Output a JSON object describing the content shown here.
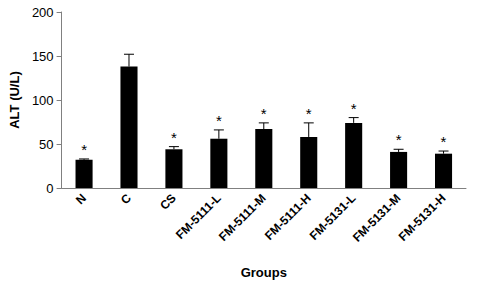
{
  "chart_data": {
    "type": "bar",
    "categories": [
      "N",
      "C",
      "CS",
      "FM-5111-L",
      "FM-5111-M",
      "FM-5111-H",
      "FM-5131-L",
      "FM-5131-M",
      "FM-5131-H"
    ],
    "values": [
      32,
      138,
      44,
      56,
      67,
      58,
      74,
      41,
      39
    ],
    "errors": [
      1,
      14,
      3,
      10,
      7,
      16,
      6,
      3,
      3
    ],
    "annotations": [
      "*",
      null,
      "*",
      "*",
      "*",
      "*",
      "*",
      "*",
      "*"
    ],
    "color": "#000000",
    "xlabel": "Groups",
    "ylabel": "ALT (U/L)",
    "ylim": [
      0,
      200
    ],
    "yticks": [
      0,
      50,
      100,
      150,
      200
    ],
    "grid": false
  }
}
